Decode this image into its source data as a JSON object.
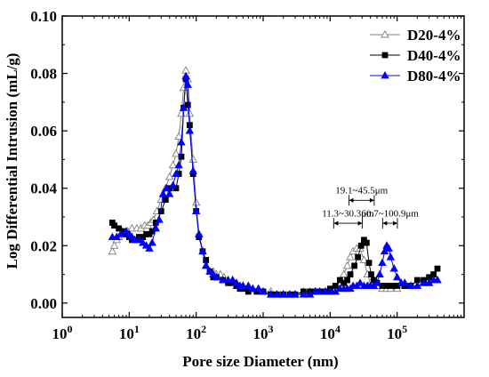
{
  "chart_data": {
    "type": "line",
    "xlabel": "Pore size Diameter (nm)",
    "ylabel": "Log Differential Intrusion (mL/g)",
    "xscale": "log",
    "xlim": [
      1,
      1000000
    ],
    "ylim": [
      -0.005,
      0.1
    ],
    "x_ticks": [
      1,
      10,
      100,
      1000,
      10000,
      100000
    ],
    "x_tick_labels": [
      {
        "base": "10",
        "exp": "0"
      },
      {
        "base": "10",
        "exp": "1"
      },
      {
        "base": "10",
        "exp": "2"
      },
      {
        "base": "10",
        "exp": "3"
      },
      {
        "base": "10",
        "exp": "4"
      },
      {
        "base": "10",
        "exp": "5"
      }
    ],
    "y_ticks": [
      0.0,
      0.02,
      0.04,
      0.06,
      0.08,
      0.1
    ],
    "y_tick_labels": [
      "0.00",
      "0.02",
      "0.04",
      "0.06",
      "0.08",
      "0.10"
    ],
    "grid": false,
    "legend_position": "top-right",
    "series": [
      {
        "name": "D20-4%",
        "marker": "triangle-open",
        "color": "#808080",
        "points": [
          [
            5.6,
            0.018
          ],
          [
            6.0,
            0.02
          ],
          [
            6.5,
            0.022
          ],
          [
            7.0,
            0.023
          ],
          [
            8.0,
            0.025
          ],
          [
            9.5,
            0.025
          ],
          [
            11,
            0.026
          ],
          [
            13,
            0.026
          ],
          [
            15,
            0.026
          ],
          [
            17,
            0.027
          ],
          [
            19,
            0.027
          ],
          [
            21,
            0.028
          ],
          [
            23,
            0.029
          ],
          [
            26,
            0.032
          ],
          [
            30,
            0.036
          ],
          [
            35,
            0.04
          ],
          [
            40,
            0.044
          ],
          [
            45,
            0.048
          ],
          [
            50,
            0.052
          ],
          [
            55,
            0.058
          ],
          [
            60,
            0.066
          ],
          [
            65,
            0.075
          ],
          [
            70,
            0.081
          ],
          [
            75,
            0.078
          ],
          [
            80,
            0.066
          ],
          [
            90,
            0.05
          ],
          [
            100,
            0.035
          ],
          [
            110,
            0.024
          ],
          [
            125,
            0.018
          ],
          [
            140,
            0.013
          ],
          [
            160,
            0.011
          ],
          [
            180,
            0.011
          ],
          [
            200,
            0.01
          ],
          [
            230,
            0.01
          ],
          [
            260,
            0.009
          ],
          [
            300,
            0.008
          ],
          [
            350,
            0.008
          ],
          [
            400,
            0.006
          ],
          [
            500,
            0.006
          ],
          [
            600,
            0.005
          ],
          [
            700,
            0.005
          ],
          [
            850,
            0.005
          ],
          [
            1000,
            0.004
          ],
          [
            1300,
            0.004
          ],
          [
            1600,
            0.003
          ],
          [
            2000,
            0.003
          ],
          [
            2500,
            0.003
          ],
          [
            3000,
            0.003
          ],
          [
            4000,
            0.004
          ],
          [
            5000,
            0.004
          ],
          [
            6000,
            0.004
          ],
          [
            7000,
            0.004
          ],
          [
            8500,
            0.004
          ],
          [
            10000,
            0.004
          ],
          [
            12000,
            0.005
          ],
          [
            14000,
            0.007
          ],
          [
            16000,
            0.01
          ],
          [
            18000,
            0.013
          ],
          [
            20000,
            0.016
          ],
          [
            22000,
            0.018
          ],
          [
            25000,
            0.019
          ],
          [
            28000,
            0.019
          ],
          [
            32000,
            0.015
          ],
          [
            36000,
            0.01
          ],
          [
            40000,
            0.007
          ],
          [
            45000,
            0.006
          ],
          [
            50000,
            0.006
          ],
          [
            60000,
            0.005
          ],
          [
            70000,
            0.005
          ],
          [
            80000,
            0.005
          ],
          [
            100000,
            0.005
          ],
          [
            130000,
            0.006
          ],
          [
            160000,
            0.006
          ],
          [
            200000,
            0.006
          ],
          [
            250000,
            0.007
          ],
          [
            300000,
            0.007
          ],
          [
            350000,
            0.008
          ],
          [
            400000,
            0.008
          ]
        ]
      },
      {
        "name": "D40-4%",
        "marker": "square-filled",
        "color": "#000000",
        "points": [
          [
            5.6,
            0.028
          ],
          [
            6.0,
            0.027
          ],
          [
            7.0,
            0.026
          ],
          [
            8.0,
            0.025
          ],
          [
            9.0,
            0.024
          ],
          [
            10,
            0.023
          ],
          [
            11,
            0.022
          ],
          [
            12,
            0.022
          ],
          [
            14,
            0.023
          ],
          [
            16,
            0.023
          ],
          [
            18,
            0.024
          ],
          [
            20,
            0.024
          ],
          [
            22,
            0.025
          ],
          [
            25,
            0.028
          ],
          [
            30,
            0.032
          ],
          [
            35,
            0.036
          ],
          [
            40,
            0.04
          ],
          [
            50,
            0.04
          ],
          [
            55,
            0.045
          ],
          [
            60,
            0.051
          ],
          [
            65,
            0.068
          ],
          [
            70,
            0.078
          ],
          [
            75,
            0.069
          ],
          [
            80,
            0.062
          ],
          [
            90,
            0.045
          ],
          [
            100,
            0.032
          ],
          [
            110,
            0.023
          ],
          [
            125,
            0.018
          ],
          [
            140,
            0.015
          ],
          [
            160,
            0.011
          ],
          [
            180,
            0.009
          ],
          [
            200,
            0.009
          ],
          [
            250,
            0.008
          ],
          [
            300,
            0.007
          ],
          [
            350,
            0.007
          ],
          [
            400,
            0.006
          ],
          [
            450,
            0.005
          ],
          [
            500,
            0.005
          ],
          [
            600,
            0.004
          ],
          [
            800,
            0.004
          ],
          [
            1000,
            0.004
          ],
          [
            1300,
            0.003
          ],
          [
            1600,
            0.003
          ],
          [
            2000,
            0.003
          ],
          [
            2500,
            0.003
          ],
          [
            3000,
            0.003
          ],
          [
            4000,
            0.004
          ],
          [
            5000,
            0.004
          ],
          [
            6000,
            0.004
          ],
          [
            7000,
            0.004
          ],
          [
            8500,
            0.004
          ],
          [
            10000,
            0.005
          ],
          [
            12000,
            0.006
          ],
          [
            14000,
            0.008
          ],
          [
            16000,
            0.007
          ],
          [
            18000,
            0.008
          ],
          [
            20000,
            0.01
          ],
          [
            23000,
            0.013
          ],
          [
            26000,
            0.016
          ],
          [
            29000,
            0.02
          ],
          [
            32000,
            0.022
          ],
          [
            35000,
            0.021
          ],
          [
            38000,
            0.014
          ],
          [
            41000,
            0.01
          ],
          [
            45000,
            0.008
          ],
          [
            50000,
            0.007
          ],
          [
            60000,
            0.006
          ],
          [
            70000,
            0.006
          ],
          [
            85000,
            0.006
          ],
          [
            100000,
            0.006
          ],
          [
            130000,
            0.006
          ],
          [
            160000,
            0.006
          ],
          [
            200000,
            0.008
          ],
          [
            250000,
            0.008
          ],
          [
            300000,
            0.009
          ],
          [
            350000,
            0.01
          ],
          [
            400000,
            0.012
          ]
        ]
      },
      {
        "name": "D80-4%",
        "marker": "triangle-filled",
        "color": "#0000ff",
        "points": [
          [
            5.6,
            0.023
          ],
          [
            6.5,
            0.023
          ],
          [
            7.5,
            0.024
          ],
          [
            9.0,
            0.025
          ],
          [
            10,
            0.024
          ],
          [
            11,
            0.023
          ],
          [
            12,
            0.022
          ],
          [
            14,
            0.022
          ],
          [
            16,
            0.021
          ],
          [
            18,
            0.02
          ],
          [
            20,
            0.019
          ],
          [
            22,
            0.021
          ],
          [
            25,
            0.026
          ],
          [
            28,
            0.029
          ],
          [
            32,
            0.038
          ],
          [
            36,
            0.04
          ],
          [
            40,
            0.038
          ],
          [
            45,
            0.041
          ],
          [
            50,
            0.045
          ],
          [
            55,
            0.048
          ],
          [
            60,
            0.056
          ],
          [
            65,
            0.068
          ],
          [
            70,
            0.079
          ],
          [
            75,
            0.076
          ],
          [
            80,
            0.06
          ],
          [
            90,
            0.046
          ],
          [
            100,
            0.032
          ],
          [
            110,
            0.024
          ],
          [
            125,
            0.018
          ],
          [
            140,
            0.013
          ],
          [
            160,
            0.011
          ],
          [
            180,
            0.01
          ],
          [
            200,
            0.009
          ],
          [
            250,
            0.008
          ],
          [
            300,
            0.008
          ],
          [
            350,
            0.008
          ],
          [
            400,
            0.007
          ],
          [
            450,
            0.006
          ],
          [
            500,
            0.006
          ],
          [
            600,
            0.006
          ],
          [
            700,
            0.005
          ],
          [
            850,
            0.005
          ],
          [
            1000,
            0.004
          ],
          [
            1300,
            0.003
          ],
          [
            1600,
            0.003
          ],
          [
            2000,
            0.003
          ],
          [
            2500,
            0.003
          ],
          [
            3000,
            0.003
          ],
          [
            4000,
            0.003
          ],
          [
            5000,
            0.003
          ],
          [
            6000,
            0.004
          ],
          [
            7000,
            0.004
          ],
          [
            8500,
            0.004
          ],
          [
            10000,
            0.004
          ],
          [
            12000,
            0.004
          ],
          [
            14000,
            0.005
          ],
          [
            16000,
            0.005
          ],
          [
            18000,
            0.005
          ],
          [
            20000,
            0.005
          ],
          [
            22000,
            0.006
          ],
          [
            25000,
            0.006
          ],
          [
            28000,
            0.007
          ],
          [
            32000,
            0.006
          ],
          [
            36000,
            0.006
          ],
          [
            40000,
            0.006
          ],
          [
            45000,
            0.006
          ],
          [
            50000,
            0.007
          ],
          [
            55000,
            0.01
          ],
          [
            60000,
            0.014
          ],
          [
            65000,
            0.018
          ],
          [
            70000,
            0.02
          ],
          [
            75000,
            0.019
          ],
          [
            80000,
            0.016
          ],
          [
            90000,
            0.012
          ],
          [
            100000,
            0.009
          ],
          [
            115000,
            0.007
          ],
          [
            130000,
            0.007
          ],
          [
            160000,
            0.006
          ],
          [
            200000,
            0.006
          ],
          [
            250000,
            0.007
          ],
          [
            300000,
            0.007
          ],
          [
            350000,
            0.008
          ],
          [
            400000,
            0.008
          ]
        ]
      }
    ],
    "annotations": [
      {
        "text": "11.3~30.3μm",
        "x_from": 11300,
        "x_to": 30300,
        "bar_y": 0.0278,
        "label_y": 0.0302
      },
      {
        "text": "19.1~45.5μm",
        "x_from": 19100,
        "x_to": 45500,
        "bar_y": 0.0358,
        "label_y": 0.0382
      },
      {
        "text": "60.7~100.9μm",
        "x_from": 60700,
        "x_to": 100900,
        "bar_y": 0.0278,
        "label_y": 0.0302
      }
    ]
  }
}
